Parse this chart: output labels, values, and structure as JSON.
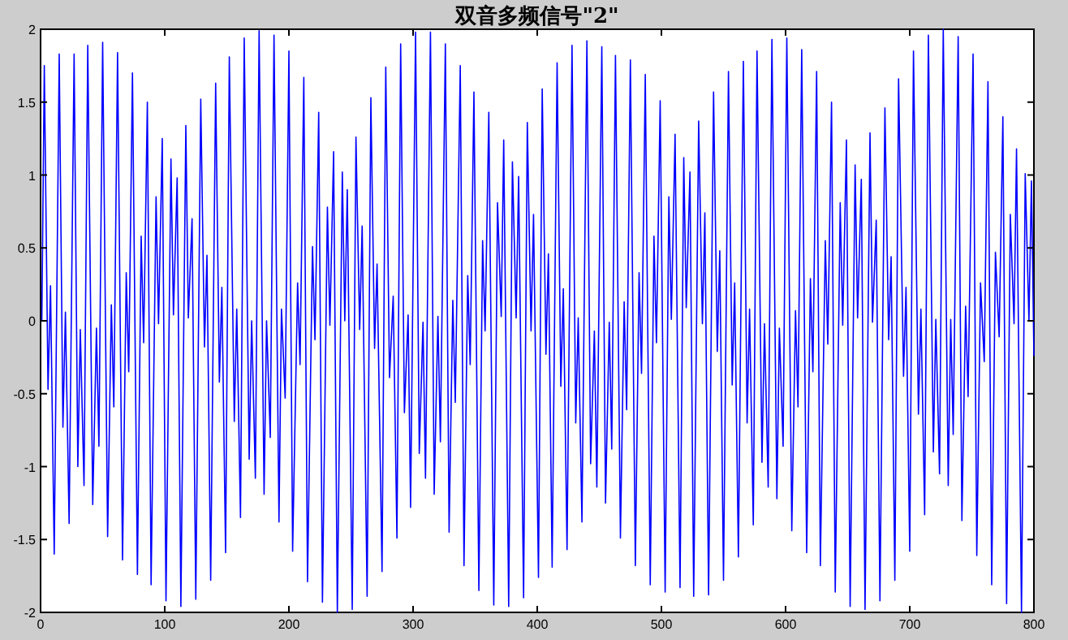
{
  "chart_data": {
    "type": "line",
    "title": "双音多频信号\"2\"",
    "x": [
      1,
      3,
      6,
      8,
      11,
      15,
      18,
      20,
      23,
      27,
      30,
      32,
      35,
      38,
      42,
      45,
      47,
      50,
      54,
      57,
      59,
      62,
      66,
      69,
      71,
      74,
      78,
      81,
      83,
      86,
      89,
      93,
      95,
      98,
      101,
      105,
      107,
      110,
      113,
      117,
      119,
      122,
      125,
      129,
      132,
      134,
      137,
      141,
      144,
      146,
      149,
      152,
      156,
      158,
      161,
      164,
      168,
      170,
      173,
      176,
      180,
      182,
      185,
      188,
      192,
      194,
      197,
      200,
      203,
      207,
      209,
      212,
      215,
      219,
      221,
      224,
      227,
      231,
      233,
      236,
      239,
      243,
      245,
      247,
      251,
      254,
      257,
      259,
      263,
      266,
      269,
      271,
      275,
      278,
      281,
      284,
      287,
      290,
      293,
      296,
      298,
      302,
      305,
      308,
      310,
      314,
      317,
      320,
      322,
      326,
      329,
      332,
      334,
      338,
      341,
      344,
      346,
      349,
      353,
      356,
      358,
      361,
      365,
      368,
      371,
      373,
      377,
      380,
      383,
      385,
      389,
      392,
      395,
      397,
      401,
      404,
      407,
      409,
      412,
      416,
      419,
      421,
      424,
      428,
      431,
      433,
      436,
      440,
      443,
      446,
      448,
      452,
      455,
      458,
      460,
      463,
      467,
      470,
      472,
      475,
      479,
      482,
      484,
      487,
      491,
      494,
      496,
      499,
      503,
      506,
      508,
      511,
      515,
      518,
      520,
      523,
      526,
      530,
      533,
      535,
      538,
      542,
      545,
      547,
      550,
      554,
      557,
      559,
      562,
      566,
      569,
      571,
      574,
      577,
      581,
      583,
      586,
      589,
      593,
      595,
      598,
      601,
      605,
      608,
      610,
      613,
      617,
      620,
      622,
      625,
      628,
      632,
      634,
      637,
      640,
      644,
      646,
      649,
      652,
      656,
      658,
      661,
      664,
      668,
      670,
      673,
      676,
      680,
      683,
      685,
      688,
      691,
      695,
      697,
      700,
      703,
      707,
      709,
      712,
      715,
      719,
      721,
      724,
      727,
      731,
      733,
      735,
      739,
      742,
      745,
      747,
      751,
      754,
      757,
      760,
      763,
      766,
      769,
      772,
      775,
      778,
      781,
      784,
      786,
      790,
      793,
      796,
      798,
      800
    ],
    "series": [
      {
        "color": "#0000ff",
        "values": [
          0,
          1.75,
          -0.47,
          0.24,
          -1.6,
          1.83,
          -0.73,
          0.06,
          -1.39,
          1.83,
          -1,
          -0.06,
          -1.13,
          1.89,
          -1.26,
          -0.05,
          -0.86,
          1.91,
          -1.48,
          0.11,
          -0.59,
          1.84,
          -1.64,
          0.33,
          -0.35,
          1.7,
          -1.74,
          0.58,
          -0.15,
          1.5,
          -1.81,
          0.85,
          -0.02,
          1.25,
          -1.92,
          1.11,
          0.04,
          0.98,
          -1.96,
          1.34,
          0.02,
          0.7,
          -1.91,
          1.52,
          -0.18,
          0.45,
          -1.78,
          1.63,
          -0.42,
          0.23,
          -1.59,
          1.81,
          -0.69,
          0.08,
          -1.35,
          1.94,
          -0.95,
          0,
          -1.08,
          1.99,
          -1.19,
          0,
          -0.8,
          1.96,
          -1.38,
          0.08,
          -0.53,
          1.85,
          -1.58,
          0.26,
          -0.3,
          1.67,
          -1.79,
          0.51,
          -0.13,
          1.43,
          -1.93,
          0.78,
          -0.03,
          1.16,
          -2,
          1.02,
          0,
          0.9,
          -1.98,
          1.26,
          -0.06,
          0.65,
          -1.89,
          1.53,
          -0.19,
          0.39,
          -1.72,
          1.74,
          -0.39,
          0.17,
          -1.49,
          1.9,
          -0.63,
          0.04,
          -1.28,
          1.98,
          -0.91,
          -0.01,
          -1.08,
          1.98,
          -1.19,
          0.03,
          -0.83,
          1.9,
          -1.45,
          0.14,
          -0.56,
          1.75,
          -1.68,
          0.31,
          -0.3,
          1.57,
          -1.85,
          0.55,
          -0.07,
          1.43,
          -1.95,
          0.81,
          0.03,
          1.24,
          -1.96,
          1.09,
          0.02,
          0.99,
          -1.9,
          1.36,
          -0.07,
          0.73,
          -1.76,
          1.59,
          -0.23,
          0.46,
          -1.69,
          1.77,
          -0.45,
          0.22,
          -1.57,
          1.89,
          -0.7,
          0.02,
          -1.38,
          1.92,
          -0.98,
          -0.07,
          -1.14,
          1.88,
          -1.25,
          -0.01,
          -0.88,
          1.82,
          -1.49,
          0.13,
          -0.61,
          1.79,
          -1.68,
          0.33,
          -0.36,
          1.69,
          -1.81,
          0.58,
          -0.15,
          1.51,
          -1.86,
          0.85,
          0.01,
          1.28,
          -1.83,
          1.12,
          0.09,
          1.02,
          -1.89,
          1.37,
          -0.02,
          0.74,
          -1.88,
          1.57,
          -0.21,
          0.48,
          -1.78,
          1.71,
          -0.44,
          0.26,
          -1.62,
          1.78,
          -0.7,
          0.08,
          -1.4,
          1.85,
          -0.97,
          -0.02,
          -1.14,
          1.93,
          -1.22,
          -0.05,
          -0.86,
          1.94,
          -1.44,
          0.07,
          -0.59,
          1.86,
          -1.59,
          0.29,
          -0.35,
          1.71,
          -1.68,
          0.55,
          -0.16,
          1.5,
          -1.86,
          0.81,
          -0.03,
          1.24,
          -1.96,
          1.07,
          0.02,
          0.97,
          -1.98,
          1.29,
          -0.01,
          0.69,
          -1.92,
          1.46,
          -0.13,
          0.44,
          -1.78,
          1.66,
          -0.38,
          0.23,
          -1.58,
          1.85,
          -0.64,
          0.08,
          -1.33,
          1.96,
          -0.9,
          0.01,
          -1.05,
          2,
          -1.13,
          0.01,
          -0.78,
          1.95,
          -1.37,
          0.1,
          -0.52,
          1.83,
          -1.61,
          0.26,
          -0.28,
          1.64,
          -1.81,
          0.47,
          -0.11,
          1.4,
          -1.94,
          0.73,
          -0.02,
          1.18,
          -2,
          1.01,
          0,
          0.96,
          -0.24
        ]
      }
    ],
    "xlim": [
      0,
      800
    ],
    "ylim": [
      -2,
      2
    ],
    "xticks": [
      0,
      100,
      200,
      300,
      400,
      500,
      600,
      700,
      800
    ],
    "yticks": [
      -2,
      -1.5,
      -1,
      -0.5,
      0,
      0.5,
      1,
      1.5,
      2
    ]
  }
}
